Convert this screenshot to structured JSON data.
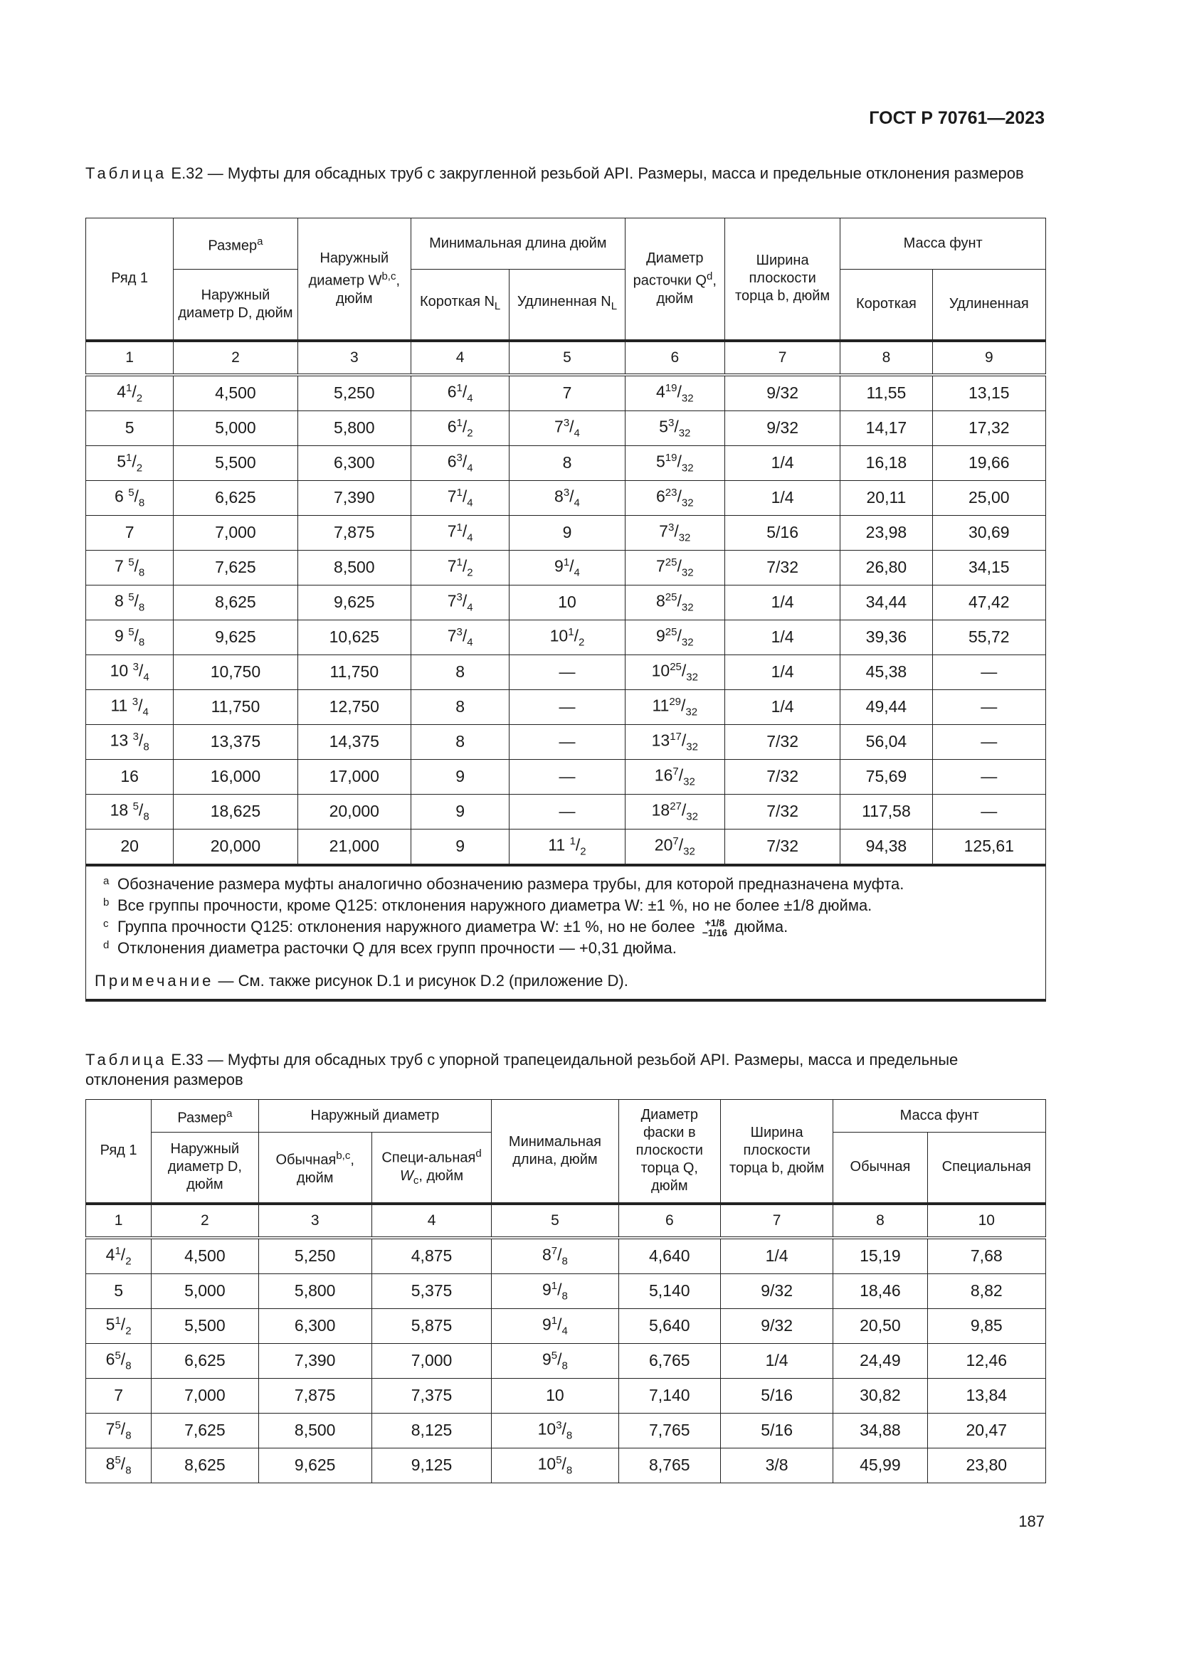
{
  "header": {
    "doc_id": "ГОСТ Р 70761—2023"
  },
  "table32": {
    "label": "Таблица",
    "title": "Е.32 — Муфты для обсадных труб с закругленной резьбой API. Размеры, масса и предельные отклонения размеров",
    "headers": {
      "row": "Ряд 1",
      "size": "Размер",
      "size_sup": "a",
      "size_d": "Наружный диаметр D, дюйм",
      "od_w": "Наружный диаметр W",
      "od_w_sup": "b,c",
      "od_w_unit": ", дюйм",
      "min_len": "Минимальная длина дюйм",
      "short": "Короткая N",
      "long": "Удлиненная N",
      "nl_sub": "L",
      "bore": "Диаметр расточки Q",
      "bore_sup": "d",
      "bore_unit": ", дюйм",
      "face": "Ширина плоскости торца b, дюйм",
      "mass": "Масса фунт",
      "mass_short": "Короткая",
      "mass_long": "Удлиненная"
    },
    "col_numbers": [
      "1",
      "2",
      "3",
      "4",
      "5",
      "6",
      "7",
      "8",
      "9"
    ],
    "rows": [
      [
        {
          "i": "4",
          "n": "1",
          "d": "2"
        },
        "4,500",
        "5,250",
        {
          "i": "6",
          "n": "1",
          "d": "4"
        },
        "7",
        {
          "i": "4",
          "n": "19",
          "d": "32"
        },
        "9/32",
        "11,55",
        "13,15"
      ],
      [
        "5",
        "5,000",
        "5,800",
        {
          "i": "6",
          "n": "1",
          "d": "2"
        },
        {
          "i": "7",
          "n": "3",
          "d": "4"
        },
        {
          "i": "5",
          "n": "3",
          "d": "32"
        },
        "9/32",
        "14,17",
        "17,32"
      ],
      [
        {
          "i": "5",
          "n": "1",
          "d": "2"
        },
        "5,500",
        "6,300",
        {
          "i": "6",
          "n": "3",
          "d": "4"
        },
        "8",
        {
          "i": "5",
          "n": "19",
          "d": "32"
        },
        "1/4",
        "16,18",
        "19,66"
      ],
      [
        {
          "i": "6 ",
          "n": "5",
          "d": "8"
        },
        "6,625",
        "7,390",
        {
          "i": "7",
          "n": "1",
          "d": "4"
        },
        {
          "i": "8",
          "n": "3",
          "d": "4"
        },
        {
          "i": "6",
          "n": "23",
          "d": "32"
        },
        "1/4",
        "20,11",
        "25,00"
      ],
      [
        "7",
        "7,000",
        "7,875",
        {
          "i": "7",
          "n": "1",
          "d": "4"
        },
        "9",
        {
          "i": "7",
          "n": "3",
          "d": "32"
        },
        "5/16",
        "23,98",
        "30,69"
      ],
      [
        {
          "i": "7 ",
          "n": "5",
          "d": "8"
        },
        "7,625",
        "8,500",
        {
          "i": "7",
          "n": "1",
          "d": "2"
        },
        {
          "i": "9",
          "n": "1",
          "d": "4"
        },
        {
          "i": "7",
          "n": "25",
          "d": "32"
        },
        "7/32",
        "26,80",
        "34,15"
      ],
      [
        {
          "i": "8 ",
          "n": "5",
          "d": "8"
        },
        "8,625",
        "9,625",
        {
          "i": "7",
          "n": "3",
          "d": "4"
        },
        "10",
        {
          "i": "8",
          "n": "25",
          "d": "32"
        },
        "1/4",
        "34,44",
        "47,42"
      ],
      [
        {
          "i": "9 ",
          "n": "5",
          "d": "8"
        },
        "9,625",
        "10,625",
        {
          "i": "7",
          "n": "3",
          "d": "4"
        },
        {
          "i": "10",
          "n": "1",
          "d": "2"
        },
        {
          "i": "9",
          "n": "25",
          "d": "32"
        },
        "1/4",
        "39,36",
        "55,72"
      ],
      [
        {
          "i": "10 ",
          "n": "3",
          "d": "4"
        },
        "10,750",
        "11,750",
        "8",
        "—",
        {
          "i": "10",
          "n": "25",
          "d": "32"
        },
        "1/4",
        "45,38",
        "—"
      ],
      [
        {
          "i": "11 ",
          "n": "3",
          "d": "4"
        },
        "11,750",
        "12,750",
        "8",
        "—",
        {
          "i": "11",
          "n": "29",
          "d": "32"
        },
        "1/4",
        "49,44",
        "—"
      ],
      [
        {
          "i": "13 ",
          "n": "3",
          "d": "8"
        },
        "13,375",
        "14,375",
        "8",
        "—",
        {
          "i": "13",
          "n": "17",
          "d": "32"
        },
        "7/32",
        "56,04",
        "—"
      ],
      [
        "16",
        "16,000",
        "17,000",
        "9",
        "—",
        {
          "i": "16",
          "n": "7",
          "d": "32"
        },
        "7/32",
        "75,69",
        "—"
      ],
      [
        {
          "i": "18 ",
          "n": "5",
          "d": "8"
        },
        "18,625",
        "20,000",
        "9",
        "—",
        {
          "i": "18",
          "n": "27",
          "d": "32"
        },
        "7/32",
        "117,58",
        "—"
      ],
      [
        "20",
        "20,000",
        "21,000",
        "9",
        {
          "i": "11 ",
          "n": "1",
          "d": "2"
        },
        {
          "i": "20",
          "n": "7",
          "d": "32"
        },
        "7/32",
        "94,38",
        "125,61"
      ]
    ],
    "footnotes": {
      "a": "Обозначение размера муфты аналогично обозначению размера трубы, для которой предназначена муфта.",
      "b": "Все группы прочности, кроме Q125: отклонения наружного диаметра W: ±1 %, но не более ±1/8 дюйма.",
      "c_pre": "Группа прочности Q125: отклонения наружного диаметра W: ±1 %, но не более",
      "c_plus": "+1/8",
      "c_minus": "−1/16",
      "c_post": "дюйма.",
      "d": "Отклонения диаметра расточки Q для всех групп прочности — +0,31 дюйма."
    },
    "note_label": "Примечание",
    "note_text": " — См. также рисунок D.1 и рисунок D.2 (приложение D)."
  },
  "table33": {
    "label": "Таблица",
    "title": "Е.33 — Муфты для обсадных труб с упорной трапецеидальной резьбой API. Размеры, масса и предельные отклонения размеров",
    "headers": {
      "row": "Ряд 1",
      "size": "Размер",
      "size_sup": "a",
      "size_d": "Наружный диаметр D, дюйм",
      "od": "Наружный диаметр",
      "regular": "Обычная",
      "regular_sup": "b,c",
      "regular_unit": ", дюйм",
      "special": "Специ-альная",
      "special_sup": "d",
      "special_w": " W",
      "special_sub": "c",
      "special_unit": ", дюйм",
      "min_len": "Минимальная длина, дюйм",
      "chamfer": "Диаметр фаски в плоскости торца Q, дюйм",
      "face": "Ширина плоскости торца b, дюйм",
      "mass": "Масса фунт",
      "mass_regular": "Обычная",
      "mass_special": "Специальная"
    },
    "col_numbers": [
      "1",
      "2",
      "3",
      "4",
      "5",
      "6",
      "7",
      "8",
      "10"
    ],
    "rows": [
      [
        {
          "i": "4",
          "n": "1",
          "d": "2"
        },
        "4,500",
        "5,250",
        "4,875",
        {
          "i": "8",
          "n": "7",
          "d": "8"
        },
        "4,640",
        "1/4",
        "15,19",
        "7,68"
      ],
      [
        "5",
        "5,000",
        "5,800",
        "5,375",
        {
          "i": "9",
          "n": "1",
          "d": "8"
        },
        "5,140",
        "9/32",
        "18,46",
        "8,82"
      ],
      [
        {
          "i": "5",
          "n": "1",
          "d": "2"
        },
        "5,500",
        "6,300",
        "5,875",
        {
          "i": "9",
          "n": "1",
          "d": "4"
        },
        "5,640",
        "9/32",
        "20,50",
        "9,85"
      ],
      [
        {
          "i": "6",
          "n": "5",
          "d": "8"
        },
        "6,625",
        "7,390",
        "7,000",
        {
          "i": "9",
          "n": "5",
          "d": "8"
        },
        "6,765",
        "1/4",
        "24,49",
        "12,46"
      ],
      [
        "7",
        "7,000",
        "7,875",
        "7,375",
        "10",
        "7,140",
        "5/16",
        "30,82",
        "13,84"
      ],
      [
        {
          "i": "7",
          "n": "5",
          "d": "8"
        },
        "7,625",
        "8,500",
        "8,125",
        {
          "i": "10",
          "n": "3",
          "d": "8"
        },
        "7,765",
        "5/16",
        "34,88",
        "20,47"
      ],
      [
        {
          "i": "8",
          "n": "5",
          "d": "8"
        },
        "8,625",
        "9,625",
        "9,125",
        {
          "i": "10",
          "n": "5",
          "d": "8"
        },
        "8,765",
        "3/8",
        "45,99",
        "23,80"
      ]
    ]
  },
  "page_number": "187"
}
